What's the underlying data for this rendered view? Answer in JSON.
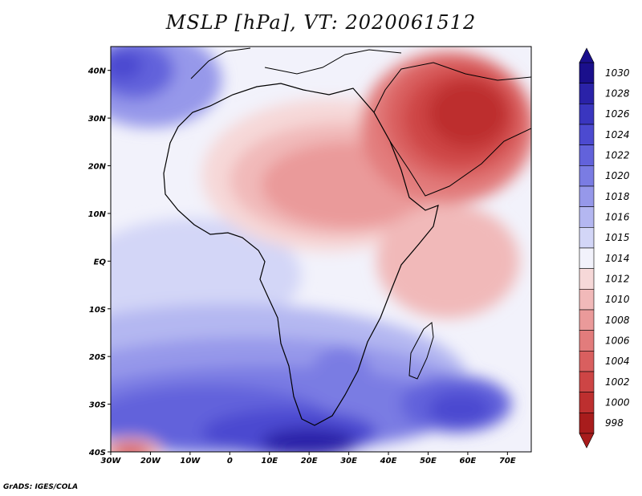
{
  "title": "MSLP [hPa], VT: 2020061512",
  "credit": "GrADS: IGES/COLA",
  "map": {
    "lon_range": [
      -30,
      76
    ],
    "lat_range": [
      -40,
      45
    ],
    "lon_ticks": [
      {
        "value": -30,
        "label": "30W"
      },
      {
        "value": -20,
        "label": "20W"
      },
      {
        "value": -10,
        "label": "10W"
      },
      {
        "value": 0,
        "label": "0"
      },
      {
        "value": 10,
        "label": "10E"
      },
      {
        "value": 20,
        "label": "20E"
      },
      {
        "value": 30,
        "label": "30E"
      },
      {
        "value": 40,
        "label": "40E"
      },
      {
        "value": 50,
        "label": "50E"
      },
      {
        "value": 60,
        "label": "60E"
      },
      {
        "value": 70,
        "label": "70E"
      }
    ],
    "lat_ticks": [
      {
        "value": 40,
        "label": "40N"
      },
      {
        "value": 30,
        "label": "30N"
      },
      {
        "value": 20,
        "label": "20N"
      },
      {
        "value": 10,
        "label": "10N"
      },
      {
        "value": 0,
        "label": "EQ"
      },
      {
        "value": -10,
        "label": "10S"
      },
      {
        "value": -20,
        "label": "20S"
      },
      {
        "value": -30,
        "label": "30S"
      },
      {
        "value": -40,
        "label": "40S"
      }
    ]
  },
  "colorbar": {
    "levels": [
      {
        "label": "1030",
        "color": "#1a0f8c"
      },
      {
        "label": "1028",
        "color": "#2a22a8"
      },
      {
        "label": "1026",
        "color": "#3a36bf"
      },
      {
        "label": "1024",
        "color": "#4c4ad0"
      },
      {
        "label": "1022",
        "color": "#6262db"
      },
      {
        "label": "1020",
        "color": "#7a7ce3"
      },
      {
        "label": "1018",
        "color": "#9698ea"
      },
      {
        "label": "1016",
        "color": "#b4b7f1"
      },
      {
        "label": "1015",
        "color": "#d3d6f7"
      },
      {
        "label": "1014",
        "color": "#f2f2fb"
      },
      {
        "label": "1012",
        "color": "#f6d8d8"
      },
      {
        "label": "1010",
        "color": "#f1b9b9"
      },
      {
        "label": "1008",
        "color": "#ea9a9a"
      },
      {
        "label": "1006",
        "color": "#e27c7c"
      },
      {
        "label": "1004",
        "color": "#d95f5f"
      },
      {
        "label": "1002",
        "color": "#cd4545"
      },
      {
        "label": "1000",
        "color": "#bd2f2f"
      },
      {
        "label": "998",
        "color": "#a81c1c"
      }
    ],
    "top_arrow_color": "#1a0f8c",
    "bottom_arrow_color": "#a81c1c"
  },
  "fields": [
    {
      "name": "basin-south-atlantic",
      "color": "#d3d6f7",
      "cx": -10,
      "cy": -3,
      "rx": 28,
      "ry": 12
    },
    {
      "name": "band-south-1016",
      "color": "#b4b7f1",
      "cx": 0,
      "cy": -25,
      "rx": 60,
      "ry": 16
    },
    {
      "name": "band-south-1018",
      "color": "#9698ea",
      "cx": 5,
      "cy": -28,
      "rx": 55,
      "ry": 12
    },
    {
      "name": "band-south-1020",
      "color": "#7a7ce3",
      "cx": 8,
      "cy": -31,
      "rx": 50,
      "ry": 9
    },
    {
      "name": "high-south-atlantic",
      "color": "#6262db",
      "cx": -5,
      "cy": -33,
      "rx": 30,
      "ry": 7
    },
    {
      "name": "high-south-core",
      "color": "#4c4ad0",
      "cx": 15,
      "cy": -36,
      "rx": 22,
      "ry": 5
    },
    {
      "name": "high-south-peak",
      "color": "#2a22a8",
      "cx": 20,
      "cy": -38,
      "rx": 12,
      "ry": 3
    },
    {
      "name": "high-indian-ocean",
      "color": "#6262db",
      "cx": 57,
      "cy": -30,
      "rx": 14,
      "ry": 6
    },
    {
      "name": "high-indian-core",
      "color": "#4c4ad0",
      "cx": 58,
      "cy": -31,
      "rx": 8,
      "ry": 3.5
    },
    {
      "name": "high-southern-africa",
      "color": "#7a7ce3",
      "cx": 28,
      "cy": -25,
      "rx": 8,
      "ry": 7
    },
    {
      "name": "high-north-atlantic",
      "color": "#9698ea",
      "cx": -20,
      "cy": 38,
      "rx": 18,
      "ry": 10
    },
    {
      "name": "high-azores",
      "color": "#6262db",
      "cx": -24,
      "cy": 40,
      "rx": 10,
      "ry": 6
    },
    {
      "name": "high-azores-core",
      "color": "#4c4ad0",
      "cx": -27,
      "cy": 41,
      "rx": 5,
      "ry": 3
    },
    {
      "name": "low-sahara-1012",
      "color": "#f6d8d8",
      "cx": 25,
      "cy": 18,
      "rx": 32,
      "ry": 16
    },
    {
      "name": "low-sahara-1010",
      "color": "#f1b9b9",
      "cx": 28,
      "cy": 17,
      "rx": 28,
      "ry": 12
    },
    {
      "name": "low-sahara-1008",
      "color": "#ea9a9a",
      "cx": 30,
      "cy": 16,
      "rx": 22,
      "ry": 9
    },
    {
      "name": "low-east-africa",
      "color": "#f1b9b9",
      "cx": 55,
      "cy": 0,
      "rx": 18,
      "ry": 12
    },
    {
      "name": "low-arabia-1006",
      "color": "#e27c7c",
      "cx": 55,
      "cy": 28,
      "rx": 22,
      "ry": 16
    },
    {
      "name": "low-arabia-1004",
      "color": "#d95f5f",
      "cx": 57,
      "cy": 30,
      "rx": 18,
      "ry": 13
    },
    {
      "name": "low-arabia-1002",
      "color": "#cd4545",
      "cx": 58,
      "cy": 30,
      "rx": 14,
      "ry": 10
    },
    {
      "name": "low-arabia-1000",
      "color": "#bd2f2f",
      "cx": 60,
      "cy": 31,
      "rx": 10,
      "ry": 7
    },
    {
      "name": "low-south-west-corner",
      "color": "#f1b9b9",
      "cx": -25,
      "cy": -40,
      "rx": 8,
      "ry": 3
    },
    {
      "name": "low-south-west-core",
      "color": "#d95f5f",
      "cx": -25,
      "cy": -40,
      "rx": 5,
      "ry": 1.8
    }
  ]
}
